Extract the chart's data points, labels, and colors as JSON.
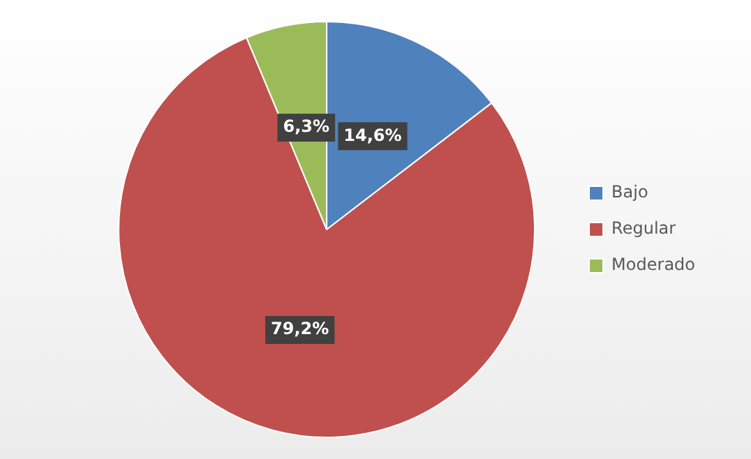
{
  "chart_data": {
    "type": "pie",
    "categories": [
      "Bajo",
      "Regular",
      "Moderado"
    ],
    "values": [
      14.6,
      79.2,
      6.3
    ],
    "colors": [
      "#4f81bd",
      "#c0504d",
      "#9bbb59"
    ],
    "value_labels": [
      "14,6%",
      "79,2%",
      "6,3%"
    ],
    "legend": "right"
  }
}
